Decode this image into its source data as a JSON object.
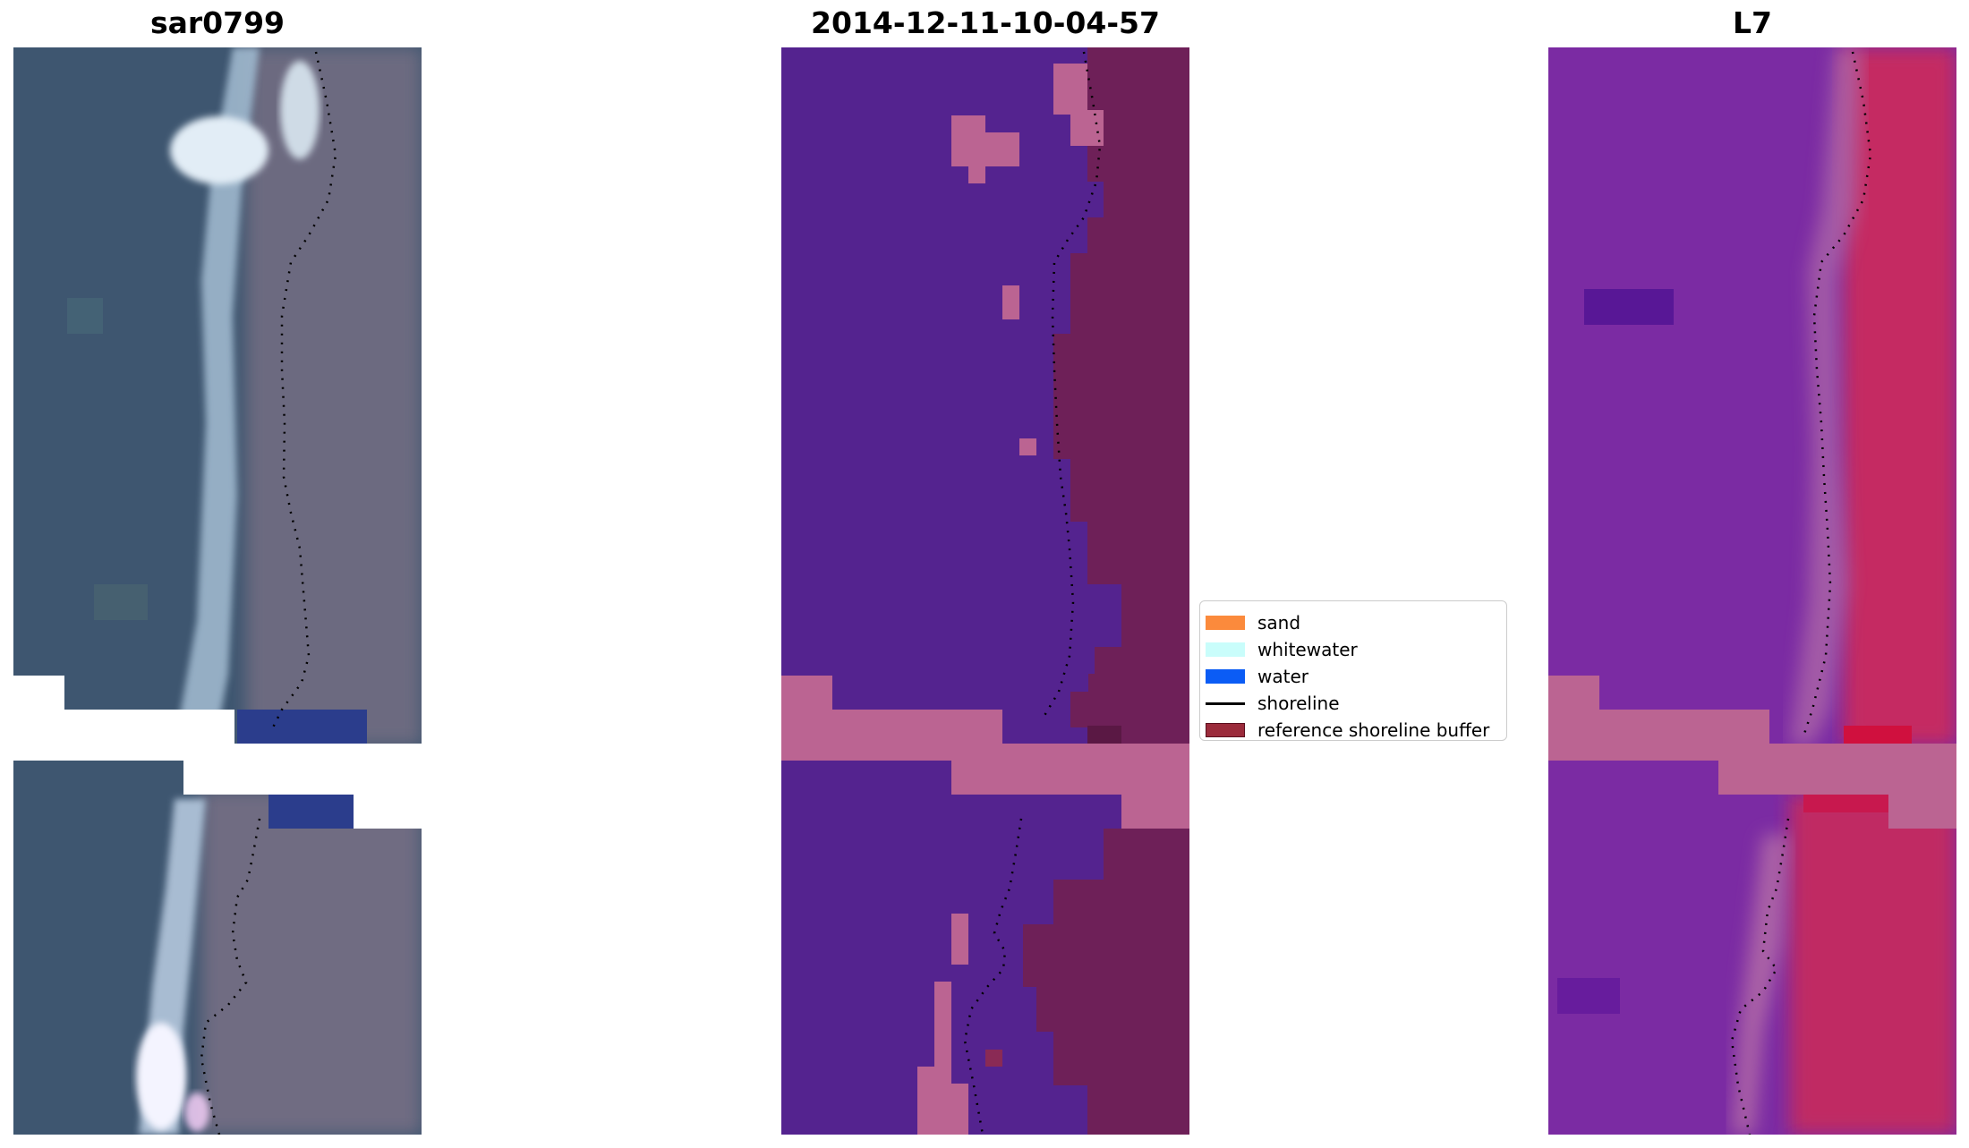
{
  "panels": {
    "left": {
      "title": "sar0799"
    },
    "middle": {
      "title": "2014-12-11-10-04-57"
    },
    "right": {
      "title": "L7"
    }
  },
  "legend": {
    "items": [
      {
        "label": "sand",
        "color": "#fb8a3c",
        "kind": "patch"
      },
      {
        "label": "whitewater",
        "color": "#c9fdfb",
        "kind": "patch"
      },
      {
        "label": "water",
        "color": "#0b5cf5",
        "kind": "patch"
      },
      {
        "label": "shoreline",
        "color": "#000000",
        "kind": "line"
      },
      {
        "label": "reference shoreline buffer",
        "color": "#9b2b3b",
        "kind": "patch"
      }
    ]
  },
  "colors": {
    "rgb_sea": "#3c5672",
    "rgb_beach": "#6e6e82",
    "rgb_surf": "#a8c0d6",
    "rgb_deep": "#2a3c8a",
    "class_water_overlay": "#54238f",
    "class_land_overlay": "#6e2058",
    "nodata_overlay": "#bb6492",
    "ndwi_sea": "#7a2aa4",
    "ndwi_land": "#c0285e"
  }
}
